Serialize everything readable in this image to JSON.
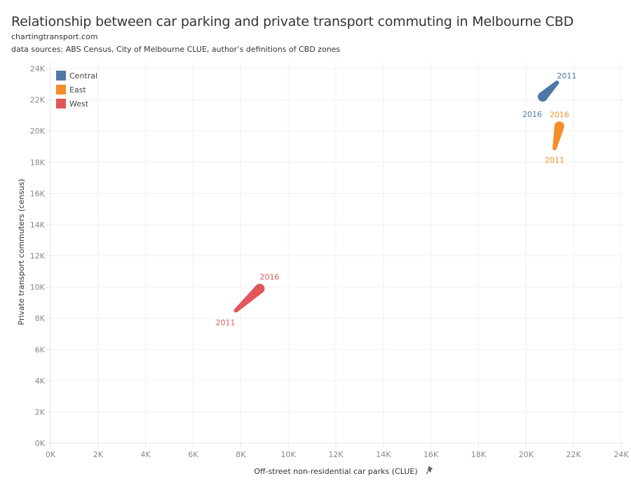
{
  "header": {
    "title": "Relationship between car parking and private transport commuting in Melbourne CBD",
    "source_site": "chartingtransport.com",
    "data_sources": "data sources: ABS Census, City of Melbourne CLUE, author’s definitions of CBD zones"
  },
  "chart_data": {
    "type": "line",
    "title": "Relationship between car parking and private transport commuting in Melbourne CBD",
    "xlabel": "Off-street non-residential car parks (CLUE)",
    "ylabel": "Private transport commuters (census)",
    "xlim": [
      0,
      24000
    ],
    "ylim": [
      0,
      24000
    ],
    "x_ticks": [
      "0K",
      "2K",
      "4K",
      "6K",
      "8K",
      "10K",
      "12K",
      "14K",
      "16K",
      "18K",
      "20K",
      "22K",
      "24K"
    ],
    "y_ticks": [
      "0K",
      "2K",
      "4K",
      "6K",
      "8K",
      "10K",
      "12K",
      "14K",
      "16K",
      "18K",
      "20K",
      "22K",
      "24K"
    ],
    "grid": true,
    "legend_position": "top-left",
    "series": [
      {
        "name": "Central",
        "color": "#4e79a7",
        "points": [
          {
            "label": "2011",
            "x": 21300,
            "y": 23100
          },
          {
            "label": "2016",
            "x": 20700,
            "y": 22200
          }
        ]
      },
      {
        "name": "East",
        "color": "#f28e2b",
        "points": [
          {
            "label": "2011",
            "x": 21200,
            "y": 18900
          },
          {
            "label": "2016",
            "x": 21400,
            "y": 20300
          }
        ]
      },
      {
        "name": "West",
        "color": "#e15759",
        "points": [
          {
            "label": "2011",
            "x": 7800,
            "y": 8500
          },
          {
            "label": "2016",
            "x": 8800,
            "y": 9900
          }
        ]
      }
    ]
  }
}
